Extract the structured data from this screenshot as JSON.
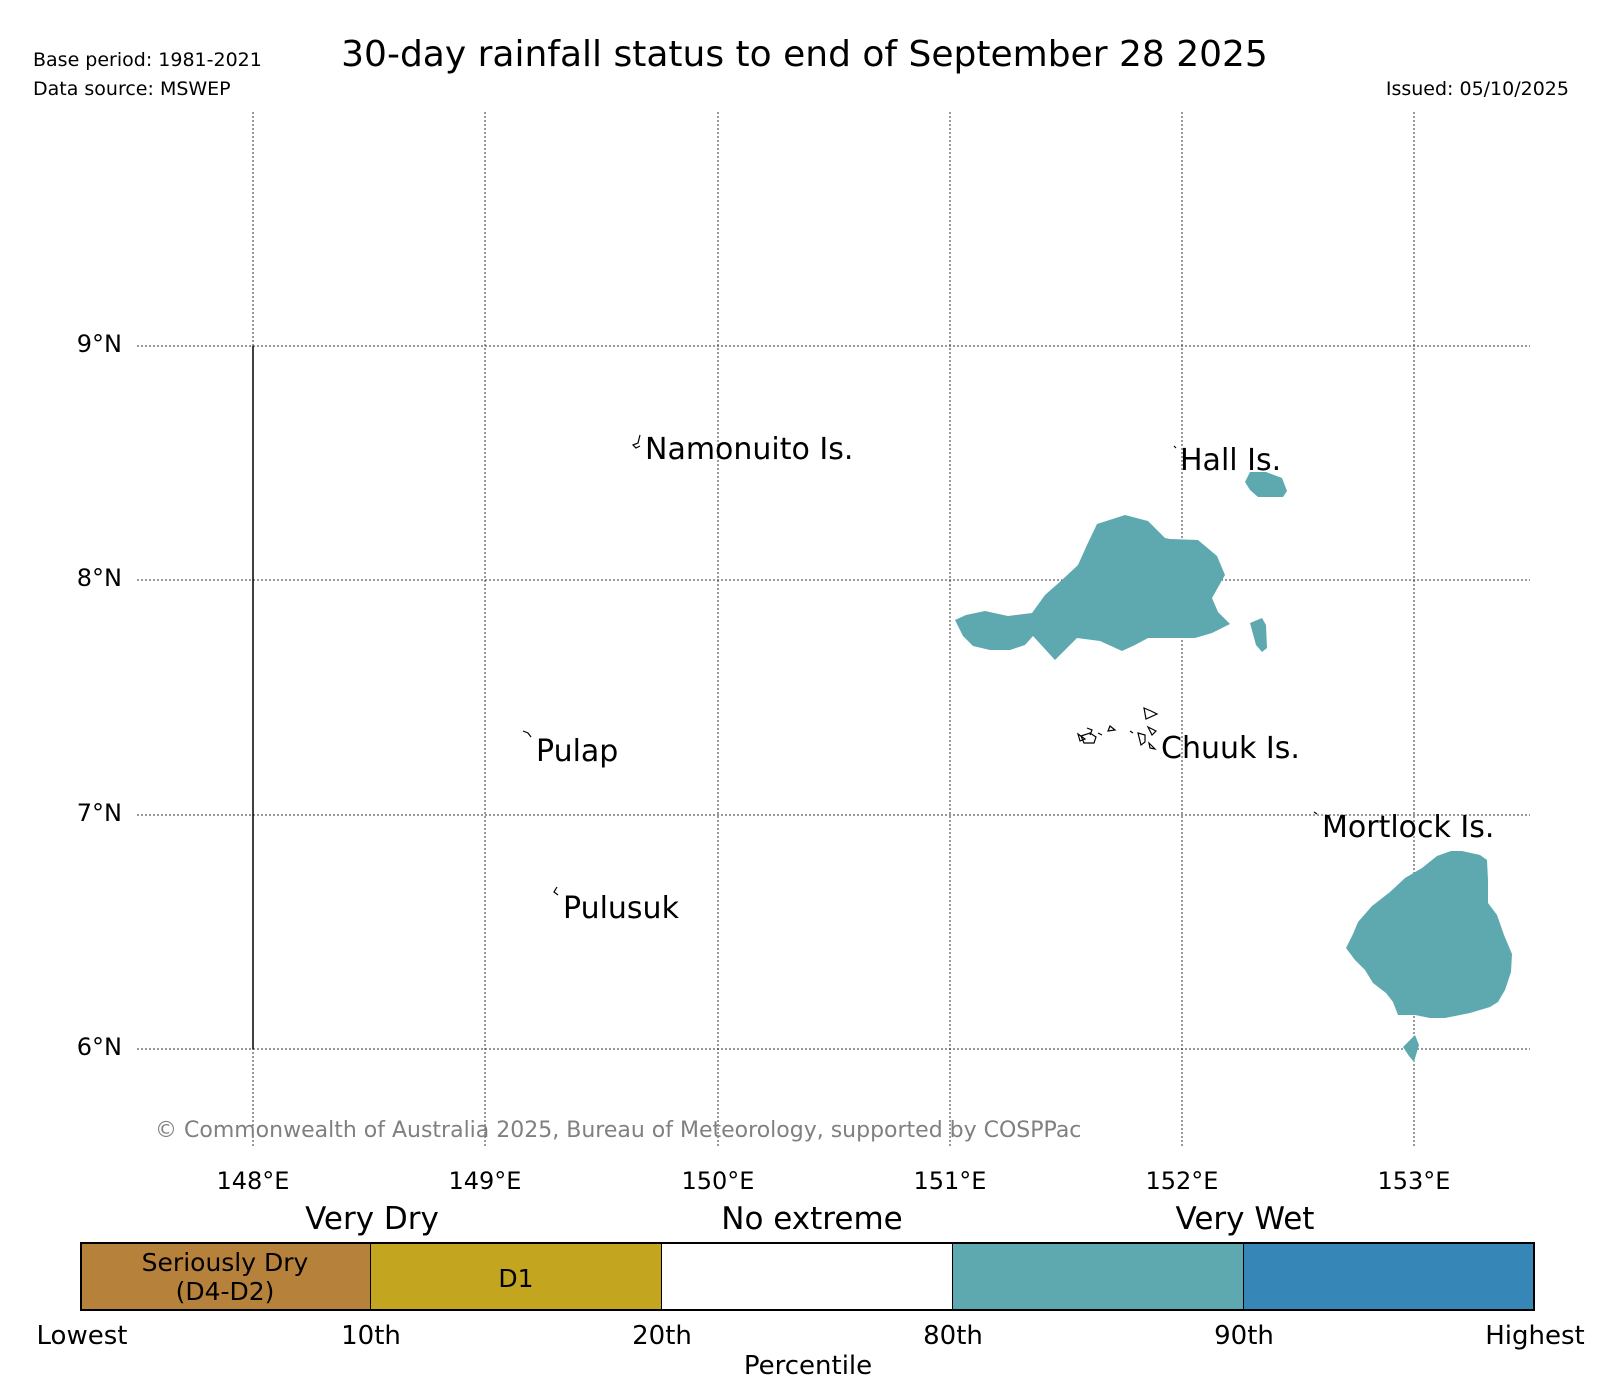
{
  "header": {
    "title": "30-day rainfall status to end of September 28 2025",
    "base_period": "Base period: 1981-2021",
    "data_source": "Data source: MSWEP",
    "issued": "Issued: 05/10/2025"
  },
  "map": {
    "lat_labels": [
      "9°N",
      "8°N",
      "7°N",
      "6°N"
    ],
    "lon_labels": [
      "148°E",
      "149°E",
      "150°E",
      "151°E",
      "152°E",
      "153°E"
    ],
    "places": {
      "namonuito": "Namonuito Is.",
      "hall": "Hall Is.",
      "pulap": "Pulap",
      "chuuk": "Chuuk Is.",
      "mortlock": "Mortlock Is.",
      "pulusuk": "Pulusuk"
    },
    "copyright": "© Commonwealth of Australia 2025, Bureau of Meteorology, supported by COSPPac",
    "wet_area_color": "#5ea9b0"
  },
  "legend": {
    "categories": {
      "very_dry": "Very Dry",
      "no_extreme": "No extreme",
      "very_wet": "Very Wet"
    },
    "segments": [
      {
        "label_line1": "Seriously Dry",
        "label_line2": "(D4-D2)",
        "color": "#b6813b"
      },
      {
        "label_line1": "D1",
        "label_line2": "",
        "color": "#c4a520"
      },
      {
        "label_line1": "",
        "label_line2": "",
        "color": "#ffffff"
      },
      {
        "label_line1": "",
        "label_line2": "",
        "color": "#5ea9b0"
      },
      {
        "label_line1": "",
        "label_line2": "",
        "color": "#3686b8"
      }
    ],
    "percentile_ticks": [
      "Lowest",
      "10th",
      "20th",
      "80th",
      "90th",
      "Highest"
    ],
    "axis_label": "Percentile"
  }
}
